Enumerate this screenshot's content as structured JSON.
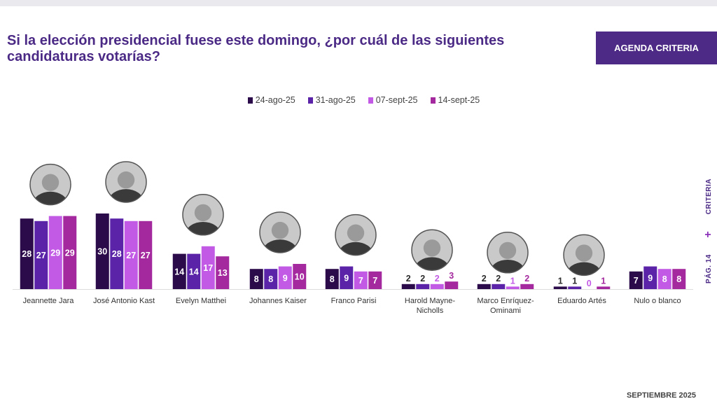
{
  "header": {
    "title_line1": "Si la elección presidencial fuese este domingo, ¿por cuál de las siguientes",
    "title_line2": "candidaturas votarías?",
    "brand": "AGENDA CRITERIA"
  },
  "side_label": {
    "criteria": "CRITERIA",
    "plus": "+",
    "page": "PÁG. 14"
  },
  "footer": {
    "date": "SEPTIEMBRE 2025"
  },
  "colors": {
    "s1": "#2b0b4a",
    "s2": "#5a23a8",
    "s3": "#c25ae6",
    "s4": "#a4299e"
  },
  "chart_data": {
    "type": "bar",
    "categories": [
      "Jeannette Jara",
      "José Antonio Kast",
      "Evelyn Matthei",
      "Johannes Kaiser",
      "Franco Parisi",
      "Harold Mayne-Nicholls",
      "Marco Enríquez-Ominami",
      "Eduardo Artés",
      "Nulo o blanco"
    ],
    "series": [
      {
        "name": "24-ago-25",
        "values": [
          28,
          30,
          14,
          8,
          8,
          2,
          2,
          1,
          7
        ]
      },
      {
        "name": "31-ago-25",
        "values": [
          27,
          28,
          14,
          8,
          9,
          2,
          2,
          1,
          9
        ]
      },
      {
        "name": "07-sept-25",
        "values": [
          29,
          27,
          17,
          9,
          7,
          2,
          1,
          0,
          8
        ]
      },
      {
        "name": "14-sept-25",
        "values": [
          29,
          27,
          13,
          10,
          7,
          3,
          2,
          1,
          8
        ]
      }
    ],
    "candidate_photos": [
      "jeannette-jara-photo",
      "jose-antonio-kast-photo",
      "evelyn-matthei-photo",
      "johannes-kaiser-photo",
      "franco-parisi-photo",
      "harold-mayne-nicholls-photo",
      "marco-enriquez-ominami-photo",
      "eduardo-artes-photo",
      ""
    ],
    "legend_position": "top-center",
    "grid": false
  }
}
